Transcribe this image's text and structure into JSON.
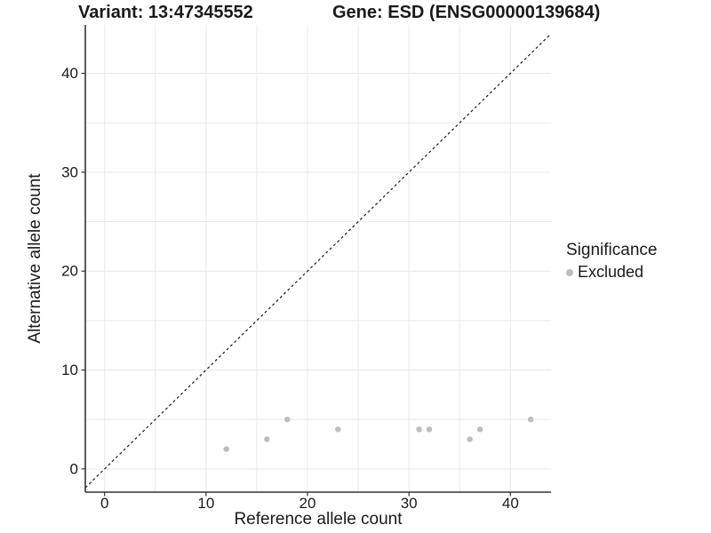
{
  "chart_data": {
    "type": "scatter",
    "title_left": "Variant: 13:47345552",
    "title_right": "Gene: ESD (ENSG00000139684)",
    "xlabel": "Reference allele count",
    "ylabel": "Alternative allele count",
    "xlim": [
      -1.9,
      44.0
    ],
    "ylim": [
      -2.35,
      44.9
    ],
    "x_ticks": [
      0,
      10,
      20,
      30,
      40
    ],
    "y_ticks": [
      0,
      10,
      20,
      30,
      40
    ],
    "grid": true,
    "grid_step": 5,
    "identity_line": {
      "slope": 1,
      "intercept": 0,
      "style": "dashed"
    },
    "series": [
      {
        "name": "Excluded",
        "color": "#bdbdbd",
        "points": [
          [
            12,
            2
          ],
          [
            16,
            3
          ],
          [
            18,
            5
          ],
          [
            23,
            4
          ],
          [
            31,
            4
          ],
          [
            32,
            4
          ],
          [
            36,
            3
          ],
          [
            37,
            4
          ],
          [
            42,
            5
          ]
        ]
      }
    ],
    "legend": {
      "title": "Significance",
      "position": "right",
      "entries": [
        {
          "label": "Excluded",
          "color": "#bdbdbd"
        }
      ]
    }
  },
  "colors": {
    "background": "#ffffff",
    "grid": "#e9e9e9",
    "axis_line": "#333333",
    "tick_text": "#1a1a1a",
    "identity_line": "#1a1a1a",
    "point": "#bdbdbd"
  }
}
